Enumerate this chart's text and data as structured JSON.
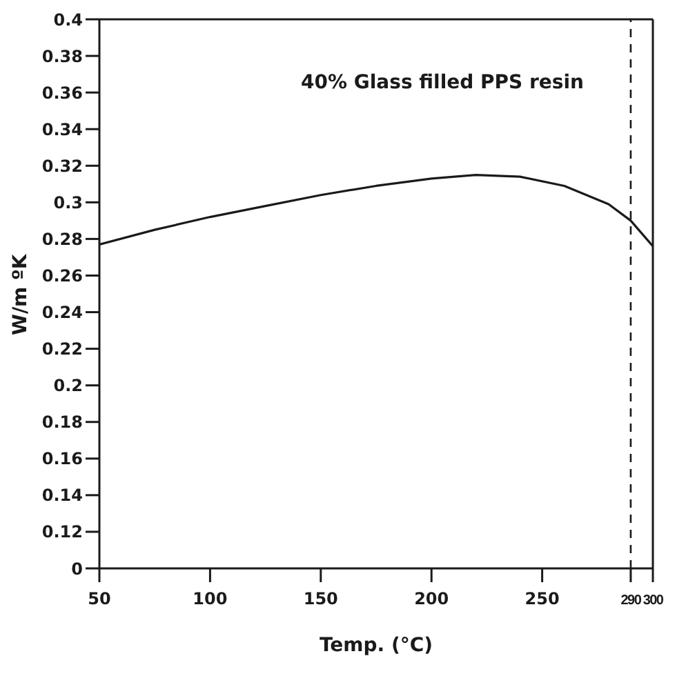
{
  "chart_data": {
    "type": "line",
    "xlabel": "Temp. (°C)",
    "ylabel": "W/m ºK",
    "x": [
      50,
      75,
      100,
      125,
      150,
      175,
      200,
      220,
      240,
      260,
      280,
      290,
      300
    ],
    "series": [
      {
        "color": "#1a1a1a",
        "values": [
          0.277,
          0.285,
          0.292,
          0.298,
          0.304,
          0.309,
          0.313,
          0.315,
          0.314,
          0.309,
          0.299,
          0.29,
          0.276
        ]
      }
    ],
    "xlim": [
      50,
      300
    ],
    "xticks": [
      50,
      100,
      150,
      200,
      250,
      290,
      300
    ],
    "ylim": [
      0.1,
      0.4
    ],
    "yticks": [
      {
        "value": 0.1,
        "label": "0"
      },
      0.12,
      0.14,
      0.16,
      0.18,
      0.2,
      0.22,
      0.24,
      0.26,
      0.28,
      0.3,
      0.32,
      0.34,
      0.36,
      0.38,
      0.4
    ],
    "ref_lines": [
      {
        "axis": "x",
        "value": 290,
        "line_style": "dashed",
        "color": "#1a1a1a"
      }
    ],
    "annotations": [
      "40% Glass filled PPS resin"
    ],
    "grid": false,
    "legend": false,
    "marker": "none",
    "line_style": "solid"
  }
}
